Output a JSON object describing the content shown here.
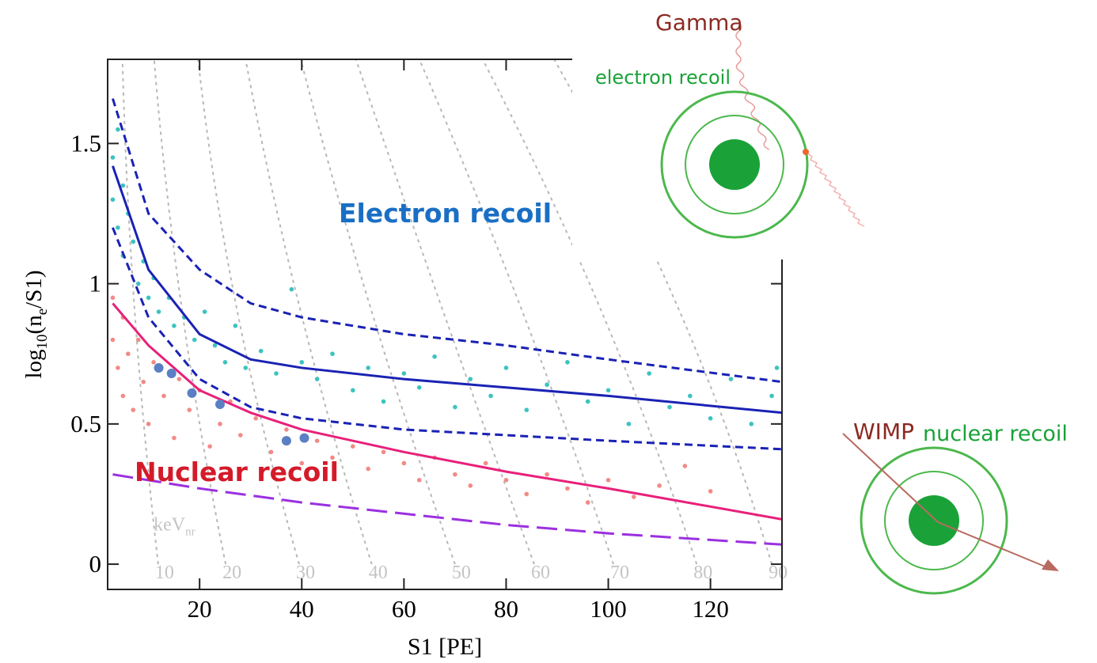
{
  "chart_data": {
    "type": "scatter",
    "xlabel": "S1 [PE]",
    "ylabel": [
      "log",
      "10",
      "(n",
      "e",
      "/S1)"
    ],
    "xlim": [
      2,
      134
    ],
    "ylim": [
      -0.09,
      1.8
    ],
    "xticks": [
      20,
      40,
      60,
      80,
      100,
      120
    ],
    "yticks": [
      0,
      0.5,
      1,
      1.5
    ],
    "annotations": [
      "Electron recoil",
      "Nuclear recoil"
    ],
    "contour_unit": [
      "keV",
      "nr"
    ],
    "contours": [
      {
        "label": "10",
        "x": [
          11.9,
          7.3,
          4.9
        ],
        "values": [
          0,
          0.9,
          1.8
        ]
      },
      {
        "label": "20",
        "x": [
          25.1,
          16.6,
          11.1
        ],
        "values": [
          0,
          0.9,
          1.8
        ]
      },
      {
        "label": "30",
        "x": [
          39.5,
          27.4,
          19.7
        ],
        "values": [
          0,
          0.9,
          1.8
        ]
      },
      {
        "label": "40",
        "x": [
          53.7,
          39.8,
          29
        ],
        "values": [
          0,
          0.9,
          1.8
        ]
      },
      {
        "label": "50",
        "x": [
          70,
          53.7,
          39.8
        ],
        "values": [
          0,
          0.9,
          1.8
        ]
      },
      {
        "label": "60",
        "x": [
          85.5,
          67.7,
          50.6
        ],
        "values": [
          0,
          0.9,
          1.8
        ]
      },
      {
        "label": "70",
        "x": [
          101,
          83.2,
          63
        ],
        "values": [
          0,
          0.9,
          1.8
        ]
      },
      {
        "label": "80",
        "x": [
          117.3,
          98.7,
          75.4
        ],
        "values": [
          0,
          0.9,
          1.8
        ]
      },
      {
        "label": "90",
        "x": [
          132,
          114,
          89.4
        ],
        "values": [
          0,
          0.9,
          1.8
        ]
      }
    ],
    "series": [
      {
        "color": "#3cc3c0",
        "mode": "markers",
        "x": [
          3,
          3,
          4,
          4,
          5,
          5,
          6,
          7,
          8,
          9,
          10,
          11,
          12,
          14,
          15,
          17,
          19,
          21,
          23,
          25,
          27,
          29,
          32,
          35,
          38,
          40,
          43,
          46,
          50,
          53,
          56,
          60,
          63,
          66,
          70,
          73,
          77,
          80,
          84,
          88,
          92,
          96,
          100,
          104,
          108,
          112,
          116,
          120,
          124,
          128,
          132,
          133
        ],
        "values": [
          1.45,
          1.3,
          1.55,
          1.2,
          1.35,
          1.1,
          1.25,
          1.15,
          1.0,
          1.08,
          0.95,
          1.02,
          0.9,
          0.95,
          0.85,
          0.88,
          0.8,
          0.9,
          0.78,
          0.72,
          0.85,
          0.7,
          0.76,
          0.68,
          0.98,
          0.72,
          0.66,
          0.75,
          0.62,
          0.7,
          0.58,
          0.68,
          0.63,
          0.74,
          0.56,
          0.66,
          0.6,
          0.7,
          0.55,
          0.64,
          0.72,
          0.58,
          0.62,
          0.5,
          0.68,
          0.56,
          0.6,
          0.52,
          0.66,
          0.5,
          0.6,
          0.7
        ]
      },
      {
        "color": "#f28a86",
        "mode": "markers",
        "x": [
          3,
          3,
          4,
          5,
          5,
          6,
          7,
          8,
          9,
          10,
          11,
          13,
          15,
          16,
          18,
          20,
          22,
          24,
          26,
          28,
          31,
          34,
          37,
          40,
          43,
          46,
          50,
          53,
          56,
          60,
          63,
          66,
          70,
          73,
          76,
          80,
          84,
          88,
          92,
          96,
          100,
          105,
          110,
          115,
          120
        ],
        "values": [
          0.95,
          0.8,
          0.7,
          0.88,
          0.6,
          0.75,
          0.55,
          0.8,
          0.65,
          0.5,
          0.72,
          0.6,
          0.45,
          0.66,
          0.55,
          0.62,
          0.42,
          0.5,
          0.58,
          0.46,
          0.52,
          0.4,
          0.48,
          0.36,
          0.44,
          0.38,
          0.42,
          0.34,
          0.4,
          0.36,
          0.3,
          0.38,
          0.32,
          0.28,
          0.36,
          0.3,
          0.25,
          0.32,
          0.27,
          0.22,
          0.3,
          0.24,
          0.28,
          0.35,
          0.26
        ]
      },
      {
        "color": "#5b7fc4",
        "mode": "big-markers",
        "x": [
          12,
          14.5,
          18.5,
          24,
          37,
          40.5
        ],
        "values": [
          0.7,
          0.68,
          0.61,
          0.57,
          0.44,
          0.45
        ]
      },
      {
        "color": "#1a22b4",
        "mode": "line",
        "dash": "none",
        "x": [
          3,
          10,
          20,
          30,
          40,
          60,
          80,
          100,
          134
        ],
        "values": [
          1.42,
          1.05,
          0.82,
          0.73,
          0.7,
          0.66,
          0.63,
          0.6,
          0.54
        ]
      },
      {
        "color": "#1a22b4",
        "mode": "line",
        "dash": "10 6",
        "x": [
          3,
          10,
          20,
          30,
          40,
          60,
          80,
          100,
          134
        ],
        "values": [
          1.66,
          1.25,
          1.05,
          0.93,
          0.88,
          0.82,
          0.78,
          0.73,
          0.65
        ]
      },
      {
        "color": "#1a22b4",
        "mode": "line",
        "dash": "10 6",
        "x": [
          3,
          10,
          20,
          30,
          40,
          60,
          80,
          100,
          134
        ],
        "values": [
          1.2,
          0.88,
          0.66,
          0.56,
          0.52,
          0.48,
          0.46,
          0.44,
          0.41
        ]
      },
      {
        "color": "#e8207a",
        "mode": "line",
        "dash": "none",
        "x": [
          3,
          10,
          20,
          30,
          40,
          60,
          80,
          100,
          134
        ],
        "values": [
          0.93,
          0.78,
          0.62,
          0.54,
          0.48,
          0.4,
          0.33,
          0.27,
          0.16
        ]
      },
      {
        "color": "#9b30e0",
        "mode": "line",
        "dash": "26 10",
        "x": [
          3,
          20,
          40,
          60,
          80,
          100,
          134
        ],
        "values": [
          0.32,
          0.27,
          0.22,
          0.18,
          0.14,
          0.11,
          0.07
        ]
      }
    ]
  },
  "diagram": {
    "gamma": "Gamma",
    "electron_recoil": "electron recoil",
    "wimp": "WIMP",
    "nuclear_recoil": "nuclear recoil"
  }
}
